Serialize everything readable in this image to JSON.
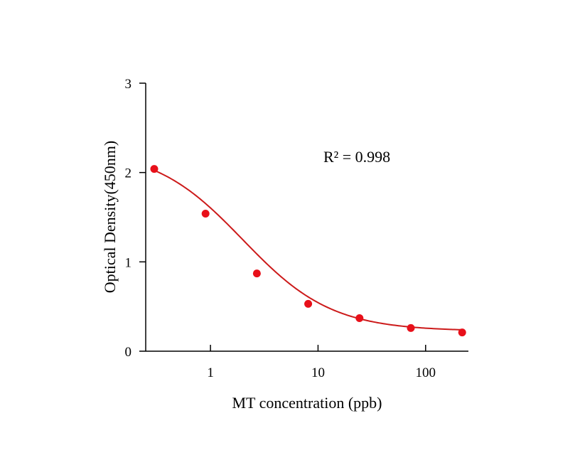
{
  "chart_data": {
    "type": "scatter",
    "title": "",
    "xlabel": "MT concentration (ppb)",
    "ylabel": "Optical Density(450nm)",
    "x_scale": "log",
    "xlim": [
      0.25,
      250
    ],
    "ylim": [
      0,
      3
    ],
    "x_ticks": [
      1,
      10,
      100
    ],
    "x_tick_labels": [
      "1",
      "10",
      "100"
    ],
    "y_ticks": [
      0,
      1,
      2,
      3
    ],
    "y_tick_labels": [
      "0",
      "1",
      "2",
      "3"
    ],
    "grid": false,
    "legend": "none",
    "annotation": "R² = 0.998",
    "colors": {
      "series": "#e8101a",
      "curve": "#cc1a1a",
      "axis": "#000000"
    },
    "series": [
      {
        "x": [
          0.3,
          0.9,
          2.7,
          8.1,
          24.3,
          72.9,
          218.7
        ],
        "y": [
          2.04,
          1.54,
          0.87,
          0.53,
          0.37,
          0.26,
          0.21
        ]
      }
    ],
    "fit": {
      "model": "4PL",
      "top": 2.27,
      "bottom": 0.225,
      "ec50": 2.0,
      "hill": 1.05
    }
  }
}
